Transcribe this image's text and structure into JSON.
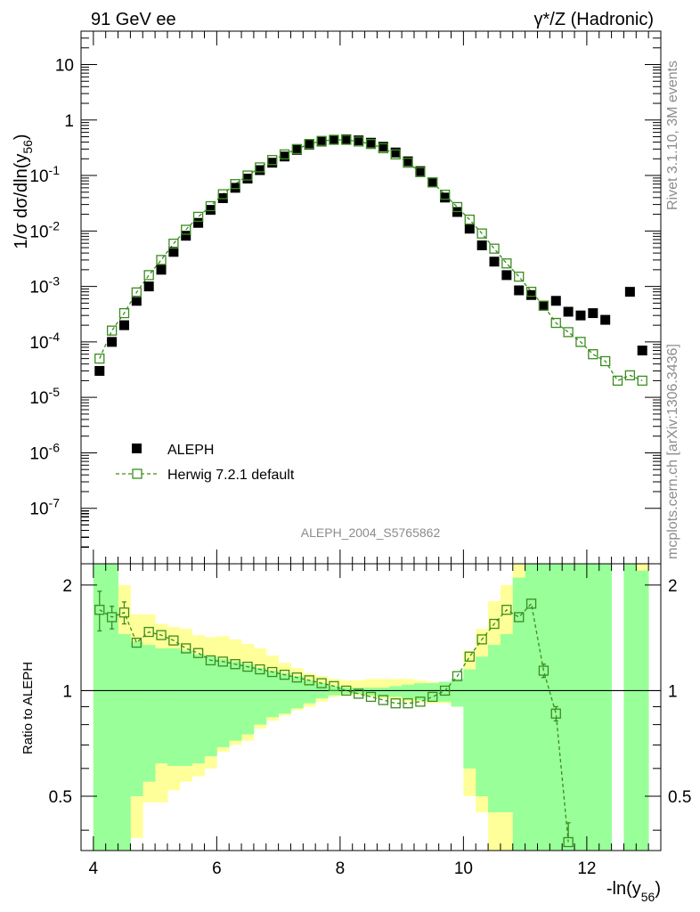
{
  "header": {
    "left": "91 GeV ee",
    "right": "γ*/Z (Hadronic)"
  },
  "side_text": {
    "top": "Rivet 3.1.10,  3M events",
    "bottom": "mcplots.cern.ch [arXiv:1306.3436]"
  },
  "analysis_label": "ALEPH_2004_S5765862",
  "colors": {
    "data": "#000000",
    "mc": "#3a8c1e",
    "band_inner": "#99ff99",
    "band_outer": "#ffff99"
  },
  "chart_data": [
    {
      "type": "scatter",
      "title": "",
      "ylabel": "1/σ  dσ/dln(y56)",
      "yscale": "log",
      "ylim": [
        1e-08,
        40
      ],
      "xlim": [
        3.8,
        13.2
      ],
      "legend": {
        "position": "lower-left",
        "entries": [
          "ALEPH",
          "Herwig 7.2.1 default"
        ]
      },
      "y_tick_labels": [
        "10",
        "1",
        "10-1",
        "10-2",
        "10-3",
        "10-4",
        "10-5",
        "10-6",
        "10-7"
      ],
      "series": [
        {
          "name": "ALEPH",
          "marker": "filled-square",
          "x": [
            4.1,
            4.3,
            4.5,
            4.7,
            4.9,
            5.1,
            5.3,
            5.5,
            5.7,
            5.9,
            6.1,
            6.3,
            6.5,
            6.7,
            6.9,
            7.1,
            7.3,
            7.5,
            7.7,
            7.9,
            8.1,
            8.3,
            8.5,
            8.7,
            8.9,
            9.1,
            9.3,
            9.5,
            9.7,
            9.9,
            10.1,
            10.3,
            10.5,
            10.7,
            10.9,
            11.1,
            11.3,
            11.5,
            11.7,
            11.9,
            12.1,
            12.3,
            12.5,
            12.7,
            12.9
          ],
          "y": [
            3e-05,
            0.0001,
            0.0002,
            0.00055,
            0.001,
            0.002,
            0.0042,
            0.0082,
            0.014,
            0.024,
            0.039,
            0.06,
            0.088,
            0.125,
            0.17,
            0.22,
            0.29,
            0.36,
            0.41,
            0.44,
            0.45,
            0.43,
            0.39,
            0.33,
            0.26,
            0.18,
            0.12,
            0.075,
            0.04,
            0.022,
            0.011,
            0.0055,
            0.0028,
            0.0016,
            0.00085,
            0.0007,
            0.00045,
            0.00055,
            0.00035,
            0.0003,
            0.00033,
            0.00025,
            null,
            0.0008,
            7e-05
          ]
        },
        {
          "name": "Herwig 7.2.1 default",
          "marker": "open-square-dashed-line",
          "x": [
            4.1,
            4.3,
            4.5,
            4.7,
            4.9,
            5.1,
            5.3,
            5.5,
            5.7,
            5.9,
            6.1,
            6.3,
            6.5,
            6.7,
            6.9,
            7.1,
            7.3,
            7.5,
            7.7,
            7.9,
            8.1,
            8.3,
            8.5,
            8.7,
            8.9,
            9.1,
            9.3,
            9.5,
            9.7,
            9.9,
            10.1,
            10.3,
            10.5,
            10.7,
            10.9,
            11.1,
            11.3,
            11.5,
            11.7,
            11.9,
            12.1,
            12.3,
            12.5,
            12.7,
            12.9
          ],
          "y": [
            5e-05,
            0.00016,
            0.00033,
            0.00078,
            0.0016,
            0.003,
            0.0059,
            0.0105,
            0.018,
            0.028,
            0.046,
            0.07,
            0.1,
            0.14,
            0.19,
            0.24,
            0.3,
            0.37,
            0.42,
            0.44,
            0.44,
            0.41,
            0.37,
            0.31,
            0.24,
            0.17,
            0.115,
            0.075,
            0.045,
            0.027,
            0.016,
            0.009,
            0.0048,
            0.0026,
            0.0015,
            0.0008,
            0.00045,
            0.00022,
            0.00015,
            0.0001,
            6e-05,
            4.5e-05,
            2e-05,
            2.5e-05,
            2e-05
          ]
        }
      ]
    },
    {
      "type": "line",
      "title": "",
      "xlabel": "-ln(y56)",
      "ylabel": "Ratio to ALEPH",
      "xlim": [
        3.8,
        13.2
      ],
      "ylim": [
        0.35,
        2.3
      ],
      "x_ticks": [
        4,
        6,
        8,
        10,
        12
      ],
      "y_ticks": [
        0.5,
        1,
        2
      ],
      "reference_line": 1,
      "bands": {
        "edges": [
          4.0,
          4.2,
          4.4,
          4.6,
          4.8,
          5.0,
          5.2,
          5.4,
          5.6,
          5.8,
          6.0,
          6.2,
          6.4,
          6.6,
          6.8,
          7.0,
          7.2,
          7.4,
          7.6,
          7.8,
          8.0,
          8.2,
          8.4,
          8.6,
          8.8,
          9.0,
          9.2,
          9.4,
          9.6,
          9.8,
          10.0,
          10.2,
          10.4,
          10.6,
          10.8,
          11.0,
          11.2,
          11.4,
          11.6,
          11.8,
          12.0,
          12.2,
          12.4,
          12.6,
          12.8,
          13.0
        ],
        "inner_hi": [
          2.6,
          2.6,
          1.45,
          1.38,
          1.35,
          1.32,
          1.32,
          1.3,
          1.27,
          1.25,
          1.23,
          1.21,
          1.19,
          1.16,
          1.14,
          1.12,
          1.1,
          1.07,
          1.05,
          1.03,
          1.02,
          1.02,
          1.02,
          1.02,
          1.03,
          1.04,
          1.05,
          1.05,
          1.06,
          1.08,
          1.15,
          1.25,
          1.35,
          1.45,
          2.1,
          2.4,
          2.6,
          2.6,
          2.6,
          2.6,
          2.6,
          2.6,
          null,
          2.4,
          2.2
        ],
        "inner_lo": [
          0.3,
          0.3,
          0.3,
          0.5,
          0.55,
          0.62,
          0.61,
          0.61,
          0.62,
          0.65,
          0.69,
          0.72,
          0.75,
          0.8,
          0.84,
          0.86,
          0.89,
          0.92,
          0.95,
          0.97,
          0.98,
          0.98,
          0.97,
          0.96,
          0.96,
          0.95,
          0.94,
          0.93,
          0.93,
          0.9,
          0.6,
          0.5,
          0.45,
          0.45,
          0.3,
          0.3,
          0.3,
          0.3,
          0.3,
          0.3,
          0.3,
          0.3,
          null,
          0.3,
          0.3
        ],
        "outer_hi": [
          2.6,
          2.6,
          2.0,
          1.65,
          1.65,
          1.55,
          1.52,
          1.5,
          1.44,
          1.42,
          1.43,
          1.4,
          1.36,
          1.32,
          1.26,
          1.2,
          1.16,
          1.12,
          1.1,
          1.08,
          1.07,
          1.07,
          1.08,
          1.08,
          1.08,
          1.08,
          1.07,
          1.06,
          1.06,
          1.07,
          1.3,
          1.5,
          1.8,
          2.0,
          2.3,
          2.6,
          2.6,
          2.6,
          2.6,
          2.6,
          2.6,
          2.6,
          null,
          2.6,
          2.6
        ],
        "outer_lo": [
          0.3,
          0.3,
          0.3,
          0.38,
          0.48,
          0.48,
          0.52,
          0.55,
          0.57,
          0.6,
          0.67,
          0.7,
          0.72,
          0.78,
          0.82,
          0.85,
          0.88,
          0.9,
          0.93,
          0.96,
          0.97,
          0.97,
          0.96,
          0.95,
          0.94,
          0.93,
          0.93,
          0.92,
          0.92,
          0.9,
          0.5,
          0.45,
          0.3,
          0.3,
          0.3,
          0.3,
          0.3,
          0.3,
          0.3,
          0.3,
          0.3,
          0.3,
          null,
          0.3,
          0.3
        ]
      },
      "series": [
        {
          "name": "Herwig 7.2.1 default",
          "x": [
            4.1,
            4.3,
            4.5,
            4.7,
            4.9,
            5.1,
            5.3,
            5.5,
            5.7,
            5.9,
            6.1,
            6.3,
            6.5,
            6.7,
            6.9,
            7.1,
            7.3,
            7.5,
            7.7,
            7.9,
            8.1,
            8.3,
            8.5,
            8.7,
            8.9,
            9.1,
            9.3,
            9.5,
            9.7,
            9.9,
            10.1,
            10.3,
            10.5,
            10.7,
            10.9,
            11.1,
            11.3,
            11.5,
            11.7
          ],
          "y": [
            1.7,
            1.62,
            1.67,
            1.37,
            1.47,
            1.44,
            1.39,
            1.32,
            1.28,
            1.22,
            1.21,
            1.19,
            1.17,
            1.15,
            1.13,
            1.11,
            1.09,
            1.07,
            1.05,
            1.03,
            1.0,
            0.98,
            0.96,
            0.94,
            0.92,
            0.92,
            0.93,
            0.96,
            1.0,
            1.1,
            1.25,
            1.4,
            1.55,
            1.7,
            1.62,
            1.77,
            1.14,
            0.86,
            0.37
          ],
          "yerr": [
            0.22,
            0.12,
            0.12,
            0.04,
            0.03,
            0.02,
            0.02,
            0.02,
            0.02,
            0.02,
            0.02,
            0.02,
            0.02,
            0.02,
            0.02,
            0.02,
            0.02,
            0.02,
            0.02,
            0.02,
            0.02,
            0.02,
            0.02,
            0.02,
            0.02,
            0.02,
            0.02,
            0.02,
            0.02,
            0.02,
            0.02,
            0.02,
            0.02,
            0.03,
            0.05,
            0.05,
            0.05,
            0.04,
            0.05
          ]
        }
      ]
    }
  ]
}
